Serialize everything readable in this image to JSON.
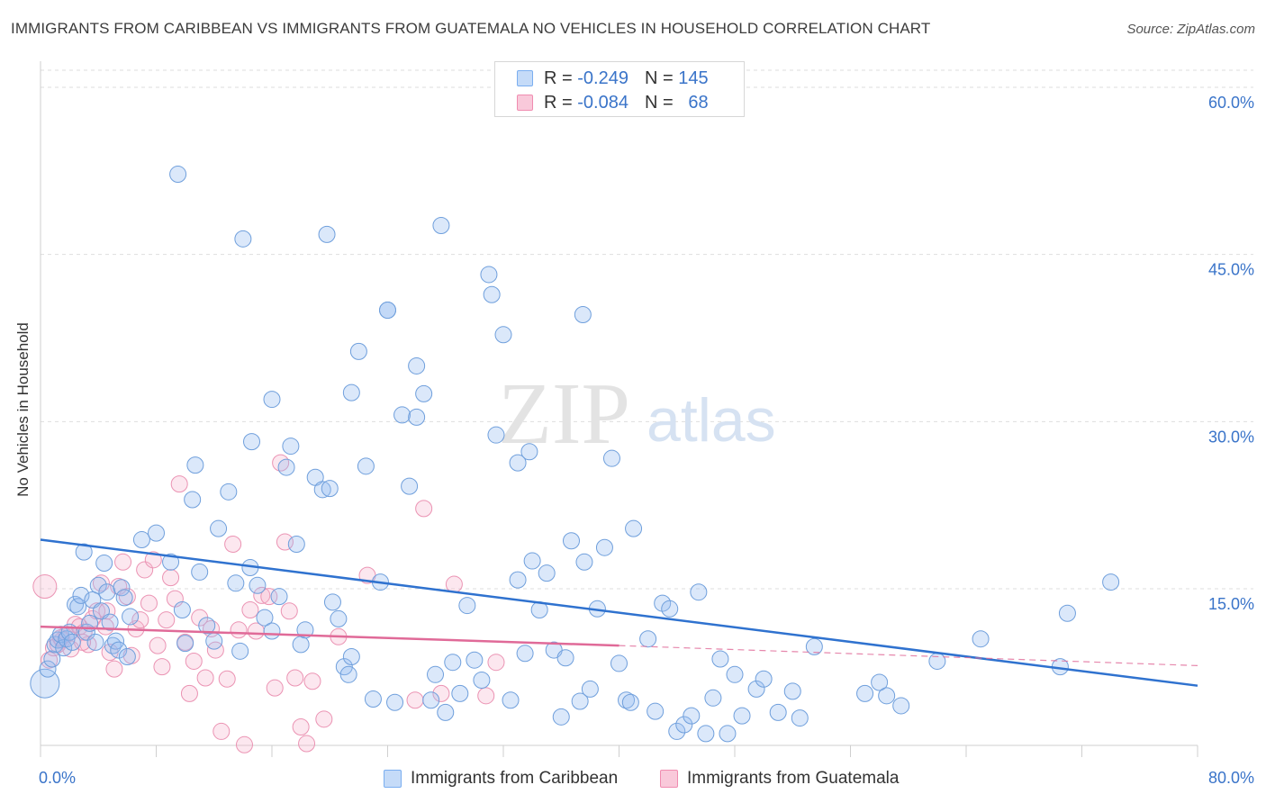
{
  "title": "IMMIGRANTS FROM CARIBBEAN VS IMMIGRANTS FROM GUATEMALA NO VEHICLES IN HOUSEHOLD CORRELATION CHART",
  "source": "Source: ZipAtlas.com",
  "watermark": {
    "zip": "ZIP",
    "atlas": "atlas"
  },
  "legend": {
    "r_label": "R =",
    "n_label": "N =",
    "rows": [
      {
        "r": "-0.249",
        "n": "145",
        "color": "#7aaef0",
        "fill": "#c5dbf8"
      },
      {
        "r": "-0.084",
        "n": "68",
        "color": "#f08cb0",
        "fill": "#f9c9da"
      }
    ]
  },
  "colors": {
    "blue_stroke": "#6f9fdc",
    "blue_fill": "rgba(152,190,240,0.35)",
    "blue_line": "#2f72cf",
    "pink_stroke": "#eb93b3",
    "pink_fill": "rgba(245,180,205,0.32)",
    "pink_line": "#e06a98",
    "tick_label": "#3a74c9",
    "grid": "#dedede"
  },
  "chart_data": {
    "type": "scatter",
    "title": "IMMIGRANTS FROM CARIBBEAN VS IMMIGRANTS FROM GUATEMALA NO VEHICLES IN HOUSEHOLD CORRELATION CHART",
    "xlabel": "",
    "ylabel": "No Vehicles in Household",
    "xlim": [
      0,
      80
    ],
    "ylim": [
      0,
      62
    ],
    "x_tick_labels": [
      {
        "value": 0,
        "label": "0.0%"
      },
      {
        "value": 80,
        "label": "80.0%"
      }
    ],
    "y_tick_labels": [
      {
        "value": 15,
        "label": "15.0%"
      },
      {
        "value": 30,
        "label": "30.0%"
      },
      {
        "value": 45,
        "label": "45.0%"
      },
      {
        "value": 60,
        "label": "60.0%"
      }
    ],
    "grid": true,
    "legend_position": "top-center",
    "series": [
      {
        "name": "Immigrants from Caribbean",
        "r": -0.249,
        "n": 145,
        "trend": {
          "x": [
            0,
            80
          ],
          "y": [
            19.4,
            6.3
          ]
        },
        "points": [
          [
            0.3,
            6.5
          ],
          [
            0.5,
            7.8
          ],
          [
            0.8,
            8.7
          ],
          [
            1.0,
            10.0
          ],
          [
            1.2,
            10.4
          ],
          [
            1.4,
            10.9
          ],
          [
            1.6,
            9.7
          ],
          [
            1.8,
            10.5
          ],
          [
            2.0,
            11.1
          ],
          [
            2.2,
            10.2
          ],
          [
            2.4,
            13.6
          ],
          [
            2.6,
            13.4
          ],
          [
            2.8,
            14.4
          ],
          [
            3.0,
            18.3
          ],
          [
            3.2,
            11.1
          ],
          [
            3.4,
            11.9
          ],
          [
            3.6,
            14.0
          ],
          [
            3.8,
            10.2
          ],
          [
            4.0,
            15.3
          ],
          [
            4.2,
            13.0
          ],
          [
            4.4,
            17.3
          ],
          [
            4.6,
            14.7
          ],
          [
            4.8,
            12.0
          ],
          [
            5.0,
            9.9
          ],
          [
            5.2,
            10.3
          ],
          [
            5.4,
            9.5
          ],
          [
            5.6,
            15.1
          ],
          [
            5.8,
            14.2
          ],
          [
            6.0,
            8.9
          ],
          [
            6.2,
            12.5
          ],
          [
            7.0,
            19.4
          ],
          [
            8.0,
            20.0
          ],
          [
            9.0,
            17.4
          ],
          [
            9.8,
            13.1
          ],
          [
            10.0,
            10.1
          ],
          [
            10.5,
            23.0
          ],
          [
            10.7,
            26.1
          ],
          [
            11.0,
            16.5
          ],
          [
            11.5,
            11.7
          ],
          [
            12.0,
            10.3
          ],
          [
            12.3,
            20.4
          ],
          [
            13.0,
            23.7
          ],
          [
            13.5,
            15.5
          ],
          [
            13.8,
            9.4
          ],
          [
            14.5,
            16.9
          ],
          [
            15.0,
            15.3
          ],
          [
            15.5,
            12.4
          ],
          [
            16.0,
            11.2
          ],
          [
            16.5,
            14.3
          ],
          [
            17.0,
            25.9
          ],
          [
            17.3,
            27.8
          ],
          [
            17.7,
            19.0
          ],
          [
            18.0,
            10.0
          ],
          [
            18.3,
            11.3
          ],
          [
            19.0,
            25.0
          ],
          [
            19.5,
            23.9
          ],
          [
            20.0,
            24.0
          ],
          [
            20.2,
            13.8
          ],
          [
            20.6,
            12.3
          ],
          [
            21.0,
            8.0
          ],
          [
            21.3,
            7.3
          ],
          [
            21.5,
            8.9
          ],
          [
            22.0,
            36.3
          ],
          [
            22.5,
            26.0
          ],
          [
            23.0,
            5.1
          ],
          [
            23.5,
            15.6
          ],
          [
            24.0,
            40.0
          ],
          [
            24.5,
            4.8
          ],
          [
            25.0,
            30.6
          ],
          [
            25.5,
            24.2
          ],
          [
            26.0,
            35.0
          ],
          [
            26.5,
            32.5
          ],
          [
            27.0,
            5.0
          ],
          [
            27.3,
            7.3
          ],
          [
            28.0,
            3.9
          ],
          [
            28.5,
            8.4
          ],
          [
            29.0,
            5.6
          ],
          [
            29.5,
            13.5
          ],
          [
            30.0,
            8.6
          ],
          [
            30.5,
            6.8
          ],
          [
            31.0,
            43.2
          ],
          [
            31.5,
            28.8
          ],
          [
            32.0,
            37.8
          ],
          [
            32.5,
            5.0
          ],
          [
            33.0,
            15.8
          ],
          [
            33.5,
            9.2
          ],
          [
            34.0,
            17.5
          ],
          [
            34.5,
            13.1
          ],
          [
            35.0,
            16.4
          ],
          [
            35.5,
            9.5
          ],
          [
            36.0,
            3.5
          ],
          [
            36.3,
            8.8
          ],
          [
            36.7,
            19.3
          ],
          [
            37.3,
            4.9
          ],
          [
            37.6,
            17.4
          ],
          [
            38.0,
            6.0
          ],
          [
            38.5,
            13.2
          ],
          [
            39.0,
            18.7
          ],
          [
            39.5,
            26.7
          ],
          [
            40.0,
            8.3
          ],
          [
            40.5,
            5.0
          ],
          [
            40.8,
            4.8
          ],
          [
            41.0,
            20.4
          ],
          [
            42.0,
            10.5
          ],
          [
            42.5,
            4.0
          ],
          [
            43.0,
            13.7
          ],
          [
            43.5,
            13.2
          ],
          [
            44.0,
            2.2
          ],
          [
            44.5,
            2.8
          ],
          [
            45.0,
            3.6
          ],
          [
            45.5,
            14.7
          ],
          [
            46.0,
            2.0
          ],
          [
            46.5,
            5.2
          ],
          [
            47.0,
            8.7
          ],
          [
            47.5,
            2.0
          ],
          [
            48.0,
            7.3
          ],
          [
            48.5,
            3.6
          ],
          [
            49.5,
            6.0
          ],
          [
            50.0,
            6.9
          ],
          [
            51.0,
            3.9
          ],
          [
            52.0,
            5.8
          ],
          [
            52.5,
            3.4
          ],
          [
            53.5,
            9.8
          ],
          [
            57.0,
            5.6
          ],
          [
            58.0,
            6.6
          ],
          [
            58.5,
            5.4
          ],
          [
            59.5,
            4.5
          ],
          [
            62.0,
            8.5
          ],
          [
            65.0,
            10.5
          ],
          [
            70.5,
            8.0
          ],
          [
            71.0,
            12.8
          ],
          [
            74.0,
            15.6
          ],
          [
            9.5,
            52.2
          ],
          [
            14.0,
            46.4
          ],
          [
            19.8,
            46.8
          ],
          [
            27.7,
            47.6
          ],
          [
            24.0,
            40.0
          ],
          [
            21.5,
            32.6
          ],
          [
            16.0,
            32.0
          ],
          [
            31.2,
            41.4
          ],
          [
            37.5,
            39.6
          ],
          [
            14.6,
            28.2
          ],
          [
            26.0,
            30.4
          ],
          [
            33.0,
            26.3
          ],
          [
            33.8,
            27.3
          ]
        ]
      },
      {
        "name": "Immigrants from Guatemala",
        "r": -0.084,
        "n": 68,
        "trend": {
          "x": [
            0,
            40
          ],
          "y": [
            11.6,
            9.9
          ]
        },
        "trend_dashed": {
          "x": [
            40,
            80
          ],
          "y": [
            9.9,
            8.1
          ]
        },
        "points": [
          [
            0.3,
            15.2
          ],
          [
            0.6,
            8.6
          ],
          [
            0.9,
            9.7
          ],
          [
            1.2,
            10.0
          ],
          [
            1.5,
            10.4
          ],
          [
            1.8,
            10.9
          ],
          [
            2.1,
            9.6
          ],
          [
            2.4,
            11.8
          ],
          [
            2.7,
            11.6
          ],
          [
            3.0,
            11.1
          ],
          [
            3.3,
            10.0
          ],
          [
            3.6,
            12.3
          ],
          [
            3.9,
            13.0
          ],
          [
            4.2,
            15.5
          ],
          [
            4.5,
            11.6
          ],
          [
            4.8,
            9.3
          ],
          [
            5.1,
            7.8
          ],
          [
            5.4,
            15.2
          ],
          [
            5.7,
            17.4
          ],
          [
            6.0,
            14.3
          ],
          [
            6.3,
            9.0
          ],
          [
            6.6,
            11.4
          ],
          [
            6.9,
            12.2
          ],
          [
            7.2,
            16.7
          ],
          [
            7.5,
            13.7
          ],
          [
            7.8,
            17.6
          ],
          [
            8.1,
            9.9
          ],
          [
            8.4,
            8.0
          ],
          [
            8.7,
            12.2
          ],
          [
            9.0,
            16.0
          ],
          [
            9.3,
            14.1
          ],
          [
            9.6,
            24.4
          ],
          [
            10.0,
            10.2
          ],
          [
            10.3,
            5.6
          ],
          [
            10.6,
            8.5
          ],
          [
            11.0,
            12.4
          ],
          [
            11.4,
            7.0
          ],
          [
            11.8,
            11.4
          ],
          [
            12.1,
            9.5
          ],
          [
            12.5,
            2.2
          ],
          [
            12.9,
            6.9
          ],
          [
            13.3,
            19.0
          ],
          [
            13.7,
            11.3
          ],
          [
            14.1,
            1.0
          ],
          [
            14.5,
            13.1
          ],
          [
            14.9,
            11.2
          ],
          [
            15.3,
            14.4
          ],
          [
            15.8,
            14.3
          ],
          [
            16.2,
            6.1
          ],
          [
            16.6,
            26.3
          ],
          [
            16.9,
            19.2
          ],
          [
            17.2,
            13.0
          ],
          [
            17.6,
            7.0
          ],
          [
            18.0,
            2.6
          ],
          [
            18.4,
            1.1
          ],
          [
            18.8,
            6.7
          ],
          [
            19.6,
            3.3
          ],
          [
            20.6,
            10.7
          ],
          [
            22.6,
            16.2
          ],
          [
            25.9,
            5.0
          ],
          [
            26.5,
            22.2
          ],
          [
            27.7,
            5.6
          ],
          [
            28.6,
            15.4
          ],
          [
            30.8,
            5.4
          ],
          [
            31.5,
            8.4
          ],
          [
            4.6,
            13.0
          ],
          [
            2.9,
            10.2
          ],
          [
            1.4,
            10.6
          ]
        ]
      }
    ]
  },
  "legend_bottom": [
    {
      "label": "Immigrants from Caribbean"
    },
    {
      "label": "Immigrants from Guatemala"
    }
  ]
}
